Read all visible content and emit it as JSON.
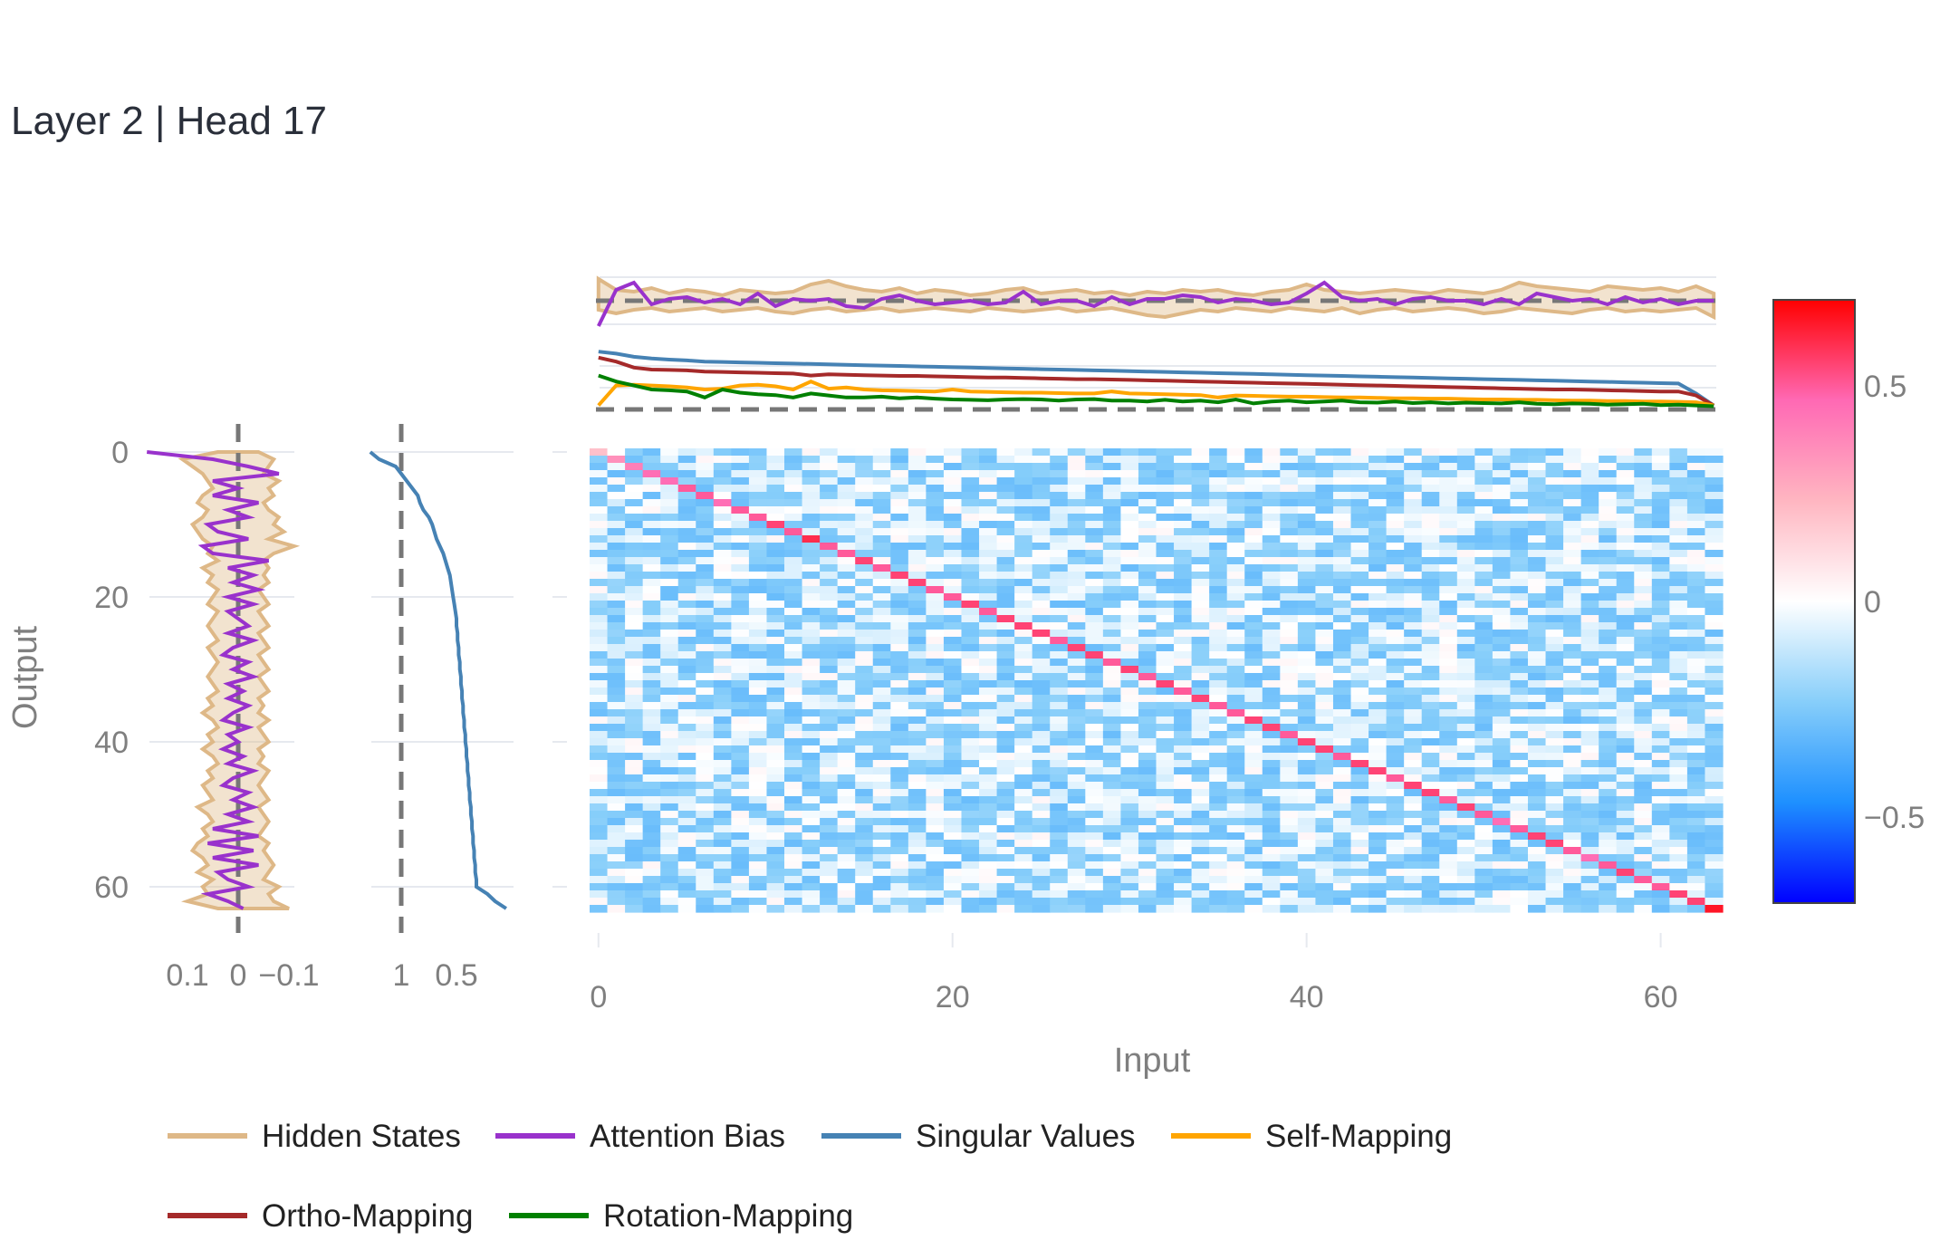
{
  "title": "Layer 2 | Head 17",
  "colors": {
    "hidden_states": "#deb887",
    "attention_bias": "#9932cc",
    "singular_values": "#4682b4",
    "self_mapping": "#ffa500",
    "ortho_mapping": "#a52a2a",
    "rotation_mapping": "#008000",
    "reference_line": "#777777"
  },
  "chart_data": [
    {
      "id": "heatmap",
      "type": "heatmap",
      "xlabel": "Input",
      "ylabel": "Output",
      "x_range": [
        0,
        63
      ],
      "y_range": [
        0,
        63
      ],
      "y_reversed": true,
      "x_ticks": [
        "0",
        "20",
        "40",
        "60"
      ],
      "x_tick_values": [
        0,
        20,
        40,
        60
      ],
      "y_ticks": [
        "0",
        "20",
        "40",
        "60"
      ],
      "y_tick_values": [
        0,
        20,
        40,
        60
      ],
      "colorscale": [
        "#0000ff",
        "#1e90ff",
        "#87cefa",
        "#ffffff",
        "#ffb6c1",
        "#ff69b4",
        "#ff0000"
      ],
      "zrange": [
        -0.7,
        0.7
      ],
      "colorbar_ticks": [
        "0.5",
        "0",
        "−0.5"
      ],
      "colorbar_tick_values": [
        0.5,
        0,
        -0.5
      ],
      "diagonal": [
        0.2,
        0.35,
        0.4,
        0.45,
        0.45,
        0.5,
        0.5,
        0.45,
        0.5,
        0.5,
        0.55,
        0.5,
        0.6,
        0.5,
        0.5,
        0.55,
        0.5,
        0.55,
        0.55,
        0.5,
        0.5,
        0.55,
        0.5,
        0.55,
        0.55,
        0.55,
        0.5,
        0.55,
        0.55,
        0.5,
        0.55,
        0.5,
        0.55,
        0.5,
        0.55,
        0.5,
        0.5,
        0.55,
        0.55,
        0.5,
        0.55,
        0.55,
        0.5,
        0.55,
        0.55,
        0.5,
        0.55,
        0.55,
        0.5,
        0.55,
        0.5,
        0.45,
        0.5,
        0.55,
        0.55,
        0.5,
        0.45,
        0.5,
        0.55,
        0.5,
        0.5,
        0.55,
        0.55,
        0.65
      ],
      "off_diagonal_range": [
        -0.15,
        0.15
      ]
    },
    {
      "id": "top-hidden-attention",
      "type": "line",
      "x_range": [
        0,
        63
      ],
      "reference_line_y": 0,
      "series": [
        {
          "name": "Hidden States",
          "band_upper": [
            0.12,
            0.06,
            0.05,
            0.07,
            0.04,
            0.06,
            0.05,
            0.03,
            0.06,
            0.05,
            0.04,
            0.05,
            0.09,
            0.11,
            0.08,
            0.06,
            0.05,
            0.07,
            0.04,
            0.06,
            0.05,
            0.03,
            0.04,
            0.06,
            0.07,
            0.04,
            0.05,
            0.06,
            0.04,
            0.05,
            0.03,
            0.05,
            0.04,
            0.06,
            0.05,
            0.06,
            0.04,
            0.03,
            0.05,
            0.06,
            0.09,
            0.06,
            0.05,
            0.04,
            0.05,
            0.06,
            0.05,
            0.04,
            0.06,
            0.05,
            0.04,
            0.06,
            0.1,
            0.08,
            0.07,
            0.06,
            0.05,
            0.08,
            0.07,
            0.06,
            0.07,
            0.05,
            0.08,
            0.04
          ],
          "band_lower": [
            -0.05,
            -0.07,
            -0.05,
            -0.04,
            -0.06,
            -0.05,
            -0.04,
            -0.06,
            -0.05,
            -0.04,
            -0.06,
            -0.07,
            -0.05,
            -0.04,
            -0.06,
            -0.05,
            -0.04,
            -0.06,
            -0.05,
            -0.04,
            -0.05,
            -0.06,
            -0.04,
            -0.05,
            -0.06,
            -0.05,
            -0.04,
            -0.06,
            -0.05,
            -0.04,
            -0.06,
            -0.08,
            -0.09,
            -0.07,
            -0.05,
            -0.06,
            -0.04,
            -0.05,
            -0.06,
            -0.04,
            -0.05,
            -0.06,
            -0.04,
            -0.07,
            -0.05,
            -0.04,
            -0.06,
            -0.05,
            -0.04,
            -0.05,
            -0.07,
            -0.06,
            -0.04,
            -0.05,
            -0.06,
            -0.07,
            -0.05,
            -0.04,
            -0.06,
            -0.05,
            -0.06,
            -0.05,
            -0.04,
            -0.09
          ]
        },
        {
          "name": "Attention Bias",
          "values": [
            -0.14,
            0.06,
            0.1,
            -0.02,
            0.01,
            0.02,
            -0.01,
            0.01,
            -0.02,
            0.04,
            -0.03,
            0.01,
            0,
            0.01,
            -0.03,
            -0.04,
            0.01,
            0.03,
            0,
            -0.02,
            -0.01,
            0,
            -0.02,
            -0.01,
            0.05,
            -0.02,
            0,
            0,
            -0.03,
            0.02,
            -0.02,
            0.01,
            0.01,
            0.03,
            0.02,
            -0.01,
            0.01,
            0,
            -0.02,
            -0.01,
            0.04,
            0.1,
            0.02,
            0,
            0.01,
            -0.02,
            0.01,
            0.02,
            0,
            0,
            -0.02,
            0.01,
            -0.02,
            0.04,
            0.02,
            0,
            0.01,
            -0.02,
            0.02,
            -0.01,
            0.01,
            -0.02,
            0,
            0
          ]
        }
      ]
    },
    {
      "id": "top-mappings",
      "type": "line",
      "x_range": [
        0,
        63
      ],
      "reference_line_y": 0,
      "series": [
        {
          "name": "Singular Values",
          "values": [
            1.45,
            1.4,
            1.32,
            1.28,
            1.25,
            1.23,
            1.2,
            1.19,
            1.18,
            1.17,
            1.16,
            1.15,
            1.14,
            1.13,
            1.12,
            1.11,
            1.1,
            1.09,
            1.08,
            1.07,
            1.06,
            1.05,
            1.04,
            1.03,
            1.02,
            1.01,
            1.0,
            0.99,
            0.98,
            0.97,
            0.96,
            0.95,
            0.94,
            0.93,
            0.92,
            0.91,
            0.9,
            0.89,
            0.88,
            0.87,
            0.86,
            0.85,
            0.84,
            0.83,
            0.82,
            0.81,
            0.8,
            0.79,
            0.78,
            0.77,
            0.76,
            0.75,
            0.74,
            0.73,
            0.72,
            0.71,
            0.7,
            0.69,
            0.68,
            0.67,
            0.66,
            0.65,
            0.4,
            0.1
          ]
        },
        {
          "name": "Ortho-Mapping",
          "values": [
            1.3,
            1.2,
            1.05,
            1.0,
            0.99,
            0.98,
            0.95,
            0.94,
            0.93,
            0.92,
            0.91,
            0.9,
            0.85,
            0.88,
            0.87,
            0.86,
            0.85,
            0.84,
            0.84,
            0.83,
            0.82,
            0.81,
            0.8,
            0.8,
            0.79,
            0.78,
            0.77,
            0.76,
            0.76,
            0.75,
            0.74,
            0.73,
            0.72,
            0.71,
            0.7,
            0.69,
            0.68,
            0.67,
            0.66,
            0.65,
            0.64,
            0.63,
            0.62,
            0.61,
            0.6,
            0.59,
            0.58,
            0.57,
            0.56,
            0.55,
            0.54,
            0.53,
            0.52,
            0.51,
            0.5,
            0.5,
            0.49,
            0.48,
            0.47,
            0.46,
            0.45,
            0.45,
            0.35,
            0.1
          ]
        },
        {
          "name": "Self-Mapping",
          "values": [
            0.1,
            0.6,
            0.62,
            0.6,
            0.58,
            0.55,
            0.5,
            0.52,
            0.6,
            0.62,
            0.58,
            0.5,
            0.7,
            0.52,
            0.55,
            0.5,
            0.48,
            0.47,
            0.46,
            0.45,
            0.5,
            0.45,
            0.44,
            0.43,
            0.42,
            0.42,
            0.41,
            0.4,
            0.4,
            0.45,
            0.4,
            0.39,
            0.38,
            0.37,
            0.36,
            0.3,
            0.35,
            0.34,
            0.33,
            0.32,
            0.32,
            0.31,
            0.3,
            0.3,
            0.29,
            0.28,
            0.28,
            0.27,
            0.27,
            0.26,
            0.25,
            0.25,
            0.24,
            0.24,
            0.23,
            0.22,
            0.22,
            0.21,
            0.21,
            0.2,
            0.2,
            0.19,
            0.18,
            0.1
          ]
        },
        {
          "name": "Rotation-Mapping",
          "values": [
            0.85,
            0.7,
            0.6,
            0.5,
            0.48,
            0.45,
            0.3,
            0.5,
            0.42,
            0.38,
            0.36,
            0.3,
            0.4,
            0.35,
            0.3,
            0.3,
            0.32,
            0.28,
            0.3,
            0.27,
            0.25,
            0.24,
            0.23,
            0.25,
            0.26,
            0.25,
            0.22,
            0.25,
            0.26,
            0.22,
            0.22,
            0.2,
            0.24,
            0.2,
            0.22,
            0.18,
            0.25,
            0.15,
            0.2,
            0.22,
            0.18,
            0.2,
            0.22,
            0.18,
            0.17,
            0.2,
            0.16,
            0.18,
            0.15,
            0.17,
            0.16,
            0.15,
            0.18,
            0.14,
            0.13,
            0.15,
            0.14,
            0.12,
            0.13,
            0.14,
            0.11,
            0.12,
            0.1,
            0.08
          ]
        }
      ]
    },
    {
      "id": "left-hidden-attention",
      "type": "line",
      "x_reversed": true,
      "x_ticks": [
        "0.1",
        "0",
        "−0.1"
      ],
      "x_tick_values": [
        0.1,
        0,
        -0.1
      ],
      "reference_line_x": 0,
      "series": [
        {
          "name": "Hidden States",
          "band_upper": [
            0.04,
            0.11,
            0.09,
            0.07,
            0.06,
            0.05,
            0.07,
            0.08,
            0.06,
            0.07,
            0.09,
            0.08,
            0.07,
            0.05,
            0.06,
            0.04,
            0.07,
            0.05,
            0.06,
            0.04,
            0.05,
            0.06,
            0.04,
            0.05,
            0.06,
            0.05,
            0.04,
            0.06,
            0.05,
            0.04,
            0.05,
            0.06,
            0.05,
            0.04,
            0.06,
            0.05,
            0.07,
            0.05,
            0.04,
            0.06,
            0.05,
            0.07,
            0.05,
            0.04,
            0.06,
            0.05,
            0.07,
            0.06,
            0.05,
            0.08,
            0.06,
            0.05,
            0.07,
            0.06,
            0.08,
            0.09,
            0.07,
            0.06,
            0.08,
            0.05,
            0.07,
            0.06,
            0.1,
            0.04
          ],
          "band_lower": [
            -0.04,
            -0.07,
            -0.06,
            -0.05,
            -0.08,
            -0.06,
            -0.07,
            -0.05,
            -0.06,
            -0.08,
            -0.07,
            -0.09,
            -0.06,
            -0.11,
            -0.07,
            -0.05,
            -0.06,
            -0.05,
            -0.06,
            -0.04,
            -0.05,
            -0.06,
            -0.04,
            -0.05,
            -0.06,
            -0.04,
            -0.05,
            -0.06,
            -0.04,
            -0.05,
            -0.06,
            -0.04,
            -0.05,
            -0.06,
            -0.04,
            -0.05,
            -0.04,
            -0.06,
            -0.04,
            -0.05,
            -0.06,
            -0.04,
            -0.05,
            -0.04,
            -0.06,
            -0.05,
            -0.04,
            -0.05,
            -0.06,
            -0.04,
            -0.05,
            -0.06,
            -0.05,
            -0.04,
            -0.06,
            -0.05,
            -0.06,
            -0.07,
            -0.06,
            -0.05,
            -0.08,
            -0.06,
            -0.07,
            -0.1
          ]
        },
        {
          "name": "Attention Bias",
          "values": [
            0.18,
            0.05,
            -0.02,
            -0.08,
            0.05,
            0,
            0.05,
            -0.04,
            0.02,
            -0.02,
            0.06,
            0.04,
            -0.02,
            0.07,
            0.05,
            -0.06,
            0.02,
            -0.03,
            0.01,
            -0.04,
            0.02,
            -0.03,
            0.02,
            0,
            -0.02,
            0.02,
            -0.03,
            0.01,
            0.03,
            -0.02,
            0.01,
            -0.03,
            0.02,
            -0.01,
            0.02,
            -0.02,
            0.01,
            0.03,
            -0.02,
            0.02,
            0,
            0.03,
            -0.01,
            0.02,
            -0.03,
            0.01,
            0.03,
            -0.02,
            0.01,
            -0.03,
            0.02,
            -0.02,
            0.05,
            -0.04,
            0.06,
            -0.03,
            0.05,
            -0.04,
            0.04,
            0.02,
            -0.02,
            0.06,
            0.02,
            -0.01
          ]
        }
      ]
    },
    {
      "id": "left-singular-values",
      "type": "line",
      "x_reversed": true,
      "x_ticks": [
        "1",
        "0.5"
      ],
      "x_tick_values": [
        1,
        0.5
      ],
      "reference_line_x": 1,
      "series": [
        {
          "name": "Singular Values",
          "values": [
            1.28,
            1.2,
            1.05,
            1.0,
            0.95,
            0.9,
            0.85,
            0.83,
            0.8,
            0.75,
            0.72,
            0.7,
            0.68,
            0.65,
            0.62,
            0.6,
            0.58,
            0.56,
            0.55,
            0.54,
            0.53,
            0.52,
            0.51,
            0.5,
            0.5,
            0.49,
            0.49,
            0.48,
            0.48,
            0.47,
            0.47,
            0.46,
            0.46,
            0.45,
            0.45,
            0.44,
            0.44,
            0.43,
            0.43,
            0.42,
            0.42,
            0.41,
            0.41,
            0.4,
            0.4,
            0.39,
            0.39,
            0.38,
            0.38,
            0.37,
            0.37,
            0.36,
            0.36,
            0.35,
            0.35,
            0.34,
            0.34,
            0.33,
            0.33,
            0.32,
            0.32,
            0.22,
            0.15,
            0.05
          ]
        }
      ]
    }
  ],
  "legend": [
    {
      "label": "Hidden States"
    },
    {
      "label": "Attention Bias"
    },
    {
      "label": "Singular Values"
    },
    {
      "label": "Self-Mapping"
    },
    {
      "label": "Ortho-Mapping"
    },
    {
      "label": "Rotation-Mapping"
    }
  ]
}
